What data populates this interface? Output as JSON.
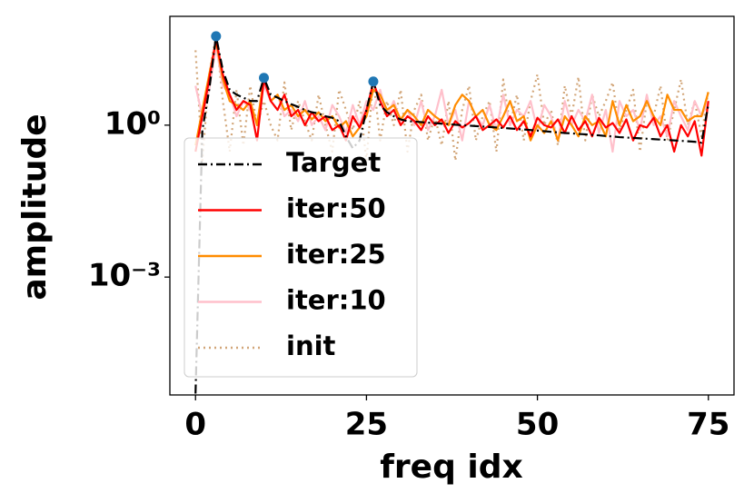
{
  "chart_data": {
    "type": "line",
    "xlabel": "freq idx",
    "ylabel": "amplitude",
    "yscale": "log",
    "xlim": [
      -3.75,
      78.75
    ],
    "xticks": [
      0,
      25,
      50,
      75
    ],
    "ylim": [
      4.7e-06,
      141
    ],
    "yticks": [
      {
        "value": 0.001,
        "label": "10⁻³"
      },
      {
        "value": 1,
        "label": "10⁰"
      }
    ],
    "legend": "lower left",
    "x": [
      0,
      1,
      2,
      3,
      4,
      5,
      6,
      7,
      8,
      9,
      10,
      11,
      12,
      13,
      14,
      15,
      16,
      17,
      18,
      19,
      20,
      21,
      22,
      23,
      24,
      25,
      26,
      27,
      28,
      29,
      30,
      31,
      32,
      33,
      34,
      35,
      36,
      37,
      38,
      39,
      40,
      41,
      42,
      43,
      44,
      45,
      46,
      47,
      48,
      49,
      50,
      51,
      52,
      53,
      54,
      55,
      56,
      57,
      58,
      59,
      60,
      61,
      62,
      63,
      64,
      65,
      66,
      67,
      68,
      69,
      70,
      71,
      72,
      73,
      74,
      75
    ],
    "series": [
      {
        "name": "Target",
        "color": "#000000",
        "style": "dashdot",
        "values": [
          5e-06,
          0.8,
          5,
          57,
          12,
          5,
          4,
          3.5,
          3,
          3,
          8.6,
          4,
          3.5,
          3,
          2.6,
          2.3,
          2,
          1.8,
          1.7,
          1.5,
          1.4,
          1.2,
          0.6,
          0.35,
          0.5,
          2,
          7.3,
          2.5,
          1.8,
          1.5,
          1.3,
          1.2,
          1.18,
          1.15,
          1.12,
          1.1,
          1.07,
          1.05,
          1.02,
          1,
          0.98,
          0.96,
          0.94,
          0.92,
          0.9,
          0.88,
          0.86,
          0.84,
          0.82,
          0.8,
          0.78,
          0.76,
          0.74,
          0.72,
          0.7,
          0.69,
          0.67,
          0.66,
          0.64,
          0.63,
          0.61,
          0.6,
          0.58,
          0.57,
          0.56,
          0.55,
          0.54,
          0.53,
          0.52,
          0.51,
          0.5,
          0.49,
          0.48,
          0.47,
          0.45,
          2.6
        ]
      },
      {
        "name": "iter:50",
        "color": "#ff0000",
        "style": "solid",
        "values": [
          0.3,
          1.5,
          8,
          50,
          10,
          4,
          2,
          3,
          2.5,
          0.5,
          8,
          3,
          2,
          4,
          1.5,
          2,
          1,
          1.8,
          1.2,
          1.5,
          0.8,
          1,
          0.5,
          1.5,
          0.9,
          2,
          7,
          3,
          1.5,
          2,
          1,
          1.5,
          1.2,
          0.8,
          1.5,
          1,
          1.3,
          0.7,
          1.2,
          0.9,
          1.1,
          1.5,
          0.8,
          1,
          1.3,
          0.9,
          1.5,
          0.8,
          1.2,
          0.6,
          1.4,
          1,
          0.9,
          1.3,
          0.7,
          1.5,
          0.8,
          1.2,
          0.6,
          1.4,
          0.9,
          1.1,
          0.7,
          1.3,
          0.5,
          1,
          0.9,
          1.4,
          0.6,
          1,
          0.3,
          1,
          0.6,
          1.2,
          0.25,
          3
        ]
      },
      {
        "name": "iter:25",
        "color": "#ff8c00",
        "style": "solid",
        "values": [
          0.4,
          2,
          10,
          45,
          8,
          3,
          2.5,
          2,
          3,
          1,
          9,
          3,
          4,
          2,
          2.5,
          1.5,
          2,
          1.3,
          1.8,
          1.2,
          1.5,
          0.9,
          1.2,
          0.6,
          0.9,
          1.5,
          5,
          4,
          2,
          2.5,
          1.3,
          2,
          1.5,
          1,
          2,
          1.5,
          1.2,
          1,
          2.5,
          4,
          3,
          1.5,
          2,
          1,
          0.8,
          1.5,
          3,
          1.2,
          1.5,
          0.5,
          1,
          0.7,
          1.2,
          0.5,
          1.5,
          1,
          0.6,
          1.5,
          1,
          1.2,
          0.6,
          3,
          1,
          2.5,
          1.2,
          1.5,
          3,
          1.5,
          1,
          4,
          2,
          2,
          1.2,
          1.5,
          1.5,
          4.5
        ]
      },
      {
        "name": "iter:10",
        "color": "#ffc0cb",
        "style": "solid",
        "values": [
          6,
          1.5,
          5,
          35,
          6,
          4,
          1.5,
          3,
          2,
          1.2,
          6,
          3,
          4,
          1.5,
          2,
          1.2,
          3,
          1,
          1.5,
          0.8,
          2.5,
          1.5,
          0.7,
          2.5,
          1,
          3,
          2,
          5,
          1.5,
          3,
          1.2,
          2,
          1,
          3,
          0.8,
          1.5,
          5,
          1,
          2,
          0.5,
          3,
          1.5,
          1,
          2.5,
          0.8,
          4,
          1,
          2,
          1.5,
          3,
          0.8,
          2.5,
          1.5,
          0.5,
          3,
          1,
          2,
          1.2,
          4,
          0.7,
          2,
          0.3,
          3,
          1.5,
          2,
          0.8,
          4,
          1,
          1.5,
          0.6,
          3,
          1.5,
          0.8,
          3,
          1.5,
          3
        ]
      },
      {
        "name": "init",
        "color": "#d2a679",
        "style": "dotted",
        "values": [
          30,
          0.2,
          10,
          60,
          3,
          0.3,
          5,
          0.4,
          6,
          1,
          3,
          1,
          0.5,
          7,
          0.8,
          3,
          1.2,
          0.5,
          4,
          1,
          0.3,
          5,
          2,
          0.8,
          3,
          0.2,
          8,
          0.5,
          3,
          1,
          5,
          0.3,
          2,
          4,
          0.5,
          1.5,
          0.4,
          3,
          0.2,
          2,
          6,
          0.5,
          1.5,
          3,
          0.3,
          8,
          1,
          4,
          0.5,
          3,
          10,
          1,
          2,
          0.4,
          6,
          1.5,
          9,
          0.5,
          4,
          1.5,
          3,
          7,
          0.8,
          2,
          5,
          0.3,
          3,
          1.5,
          6,
          0.5,
          2,
          8,
          1,
          3,
          0.6,
          5
        ]
      }
    ],
    "markers": {
      "color": "#1f77b4",
      "x": [
        3,
        10,
        26
      ],
      "values": [
        57,
        8.6,
        7.3
      ]
    }
  }
}
